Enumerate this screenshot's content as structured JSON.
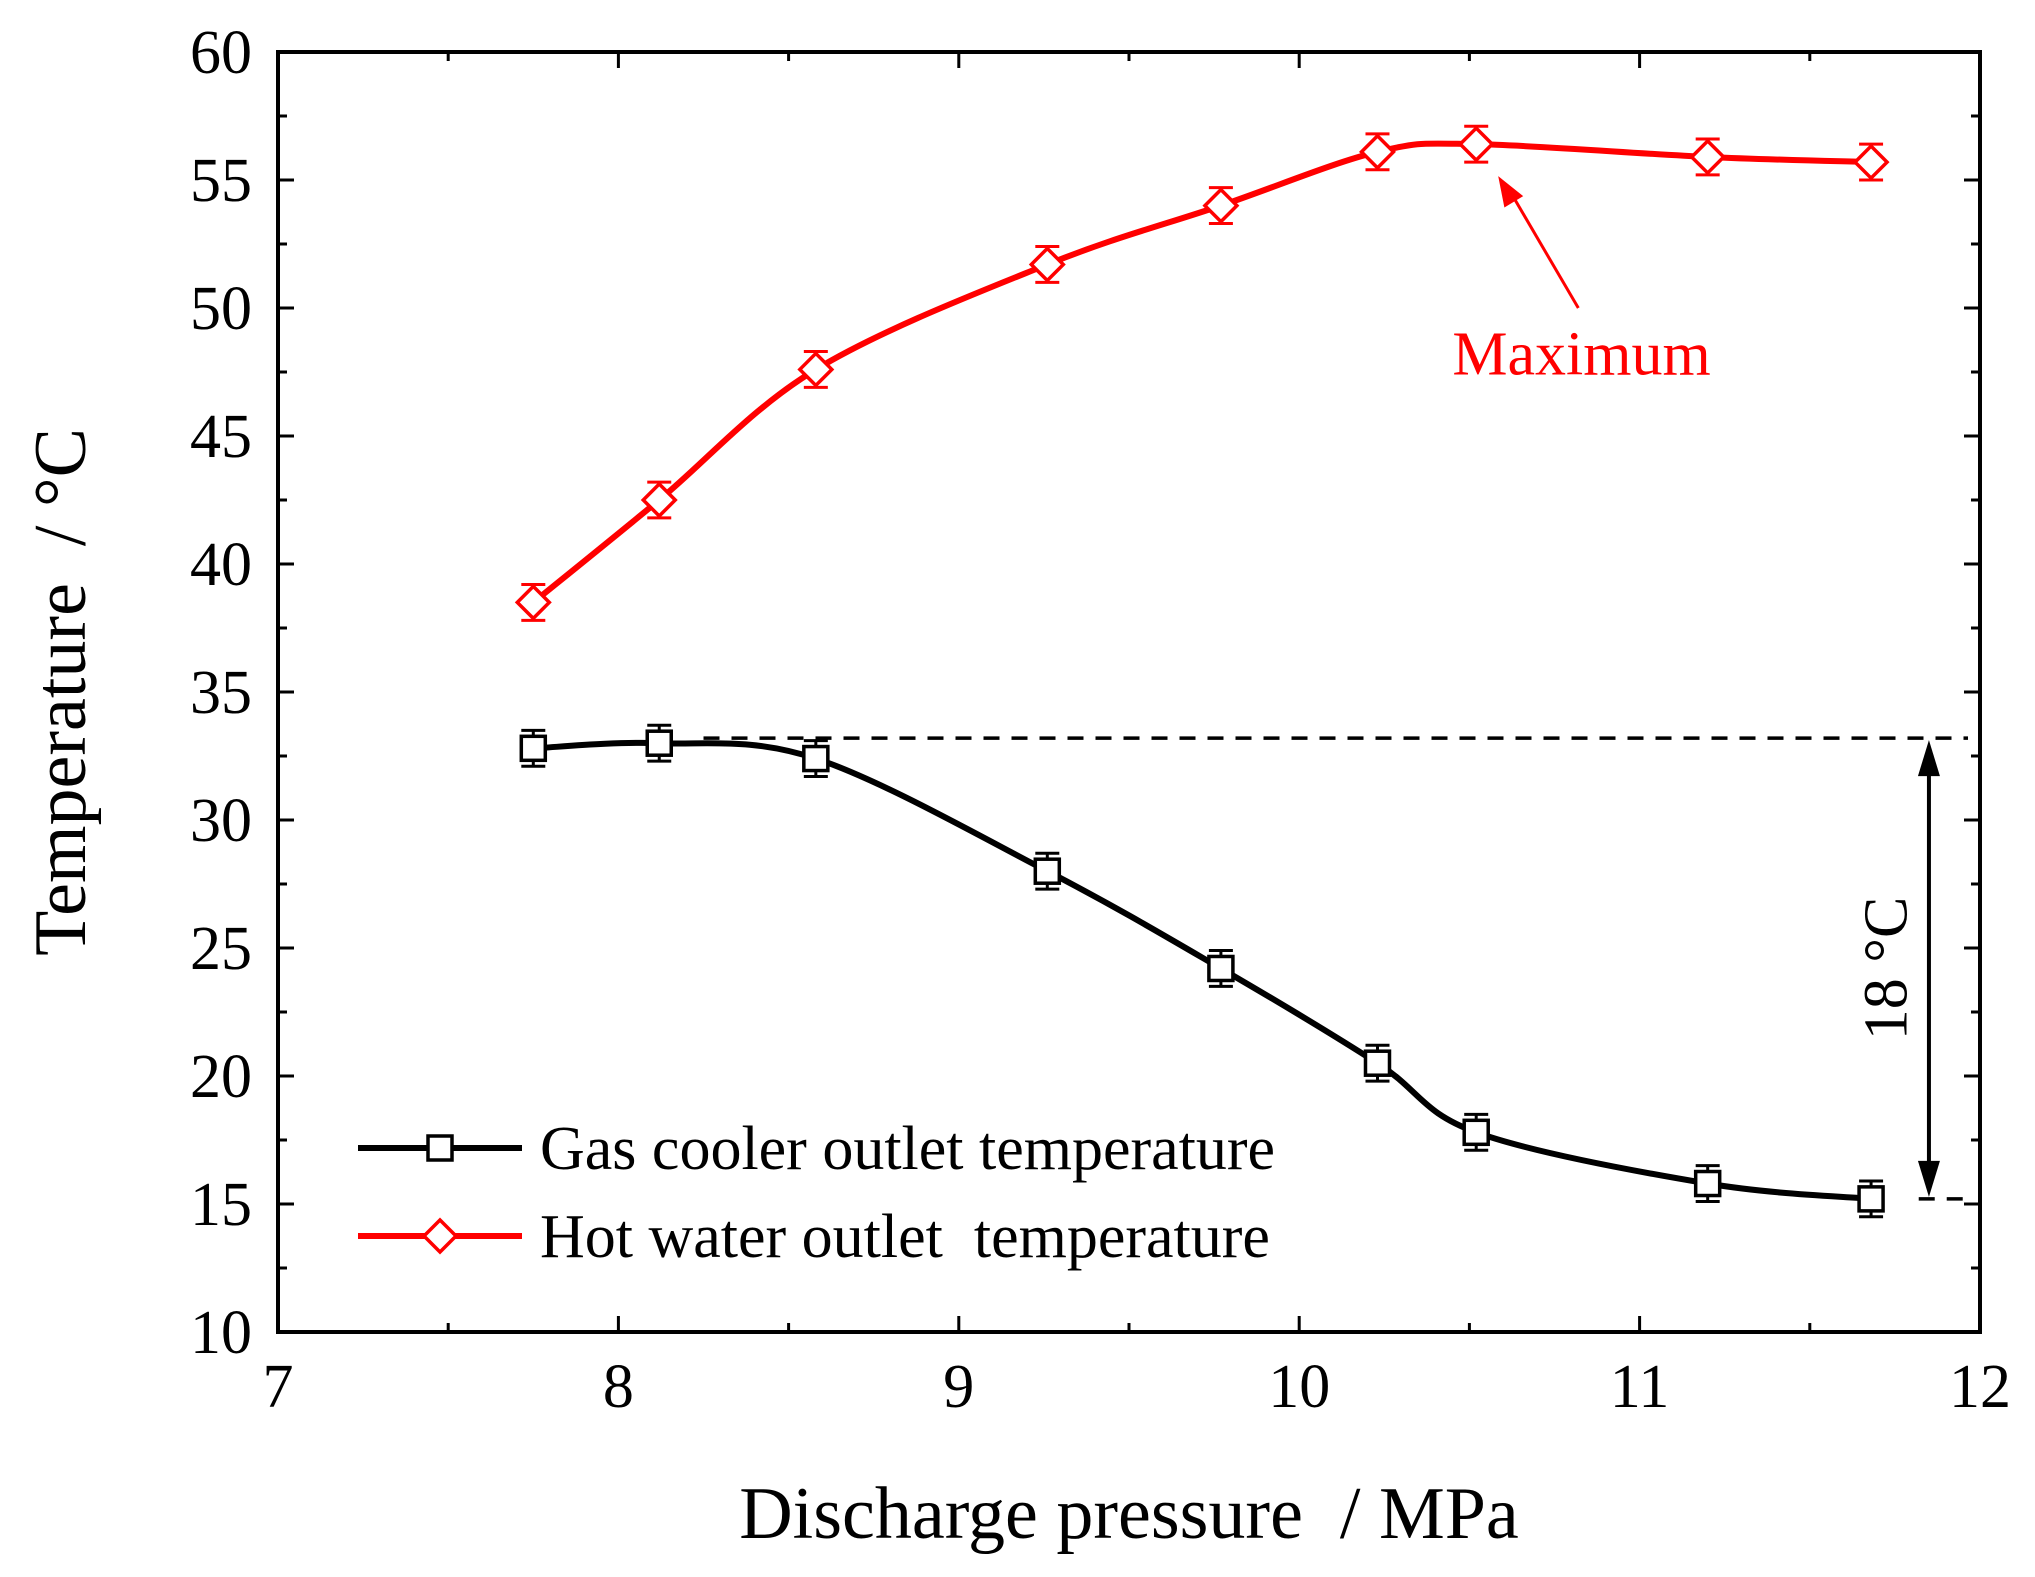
{
  "chart_data": {
    "type": "line",
    "title": "",
    "xlabel": "Discharge pressure  / MPa",
    "ylabel": "Temperature  / °C",
    "xlim": [
      7,
      12
    ],
    "ylim": [
      10,
      60
    ],
    "xticks": [
      7,
      8,
      9,
      10,
      11,
      12
    ],
    "yticks": [
      10,
      15,
      20,
      25,
      30,
      35,
      40,
      45,
      50,
      55,
      60
    ],
    "x_minor_step": 0.5,
    "y_minor_step": 2.5,
    "grid": false,
    "legend_position": "bottom-left",
    "series": [
      {
        "name": "Gas cooler outlet temperature",
        "color": "#000000",
        "marker": "square",
        "x": [
          7.75,
          8.12,
          8.58,
          9.26,
          9.77,
          10.23,
          10.52,
          11.2,
          11.68
        ],
        "y": [
          32.8,
          33.0,
          32.4,
          28.0,
          24.2,
          20.5,
          17.8,
          15.8,
          15.2
        ],
        "error": [
          0.7,
          0.7,
          0.7,
          0.7,
          0.7,
          0.7,
          0.7,
          0.7,
          0.7
        ]
      },
      {
        "name": "Hot water outlet  temperature",
        "color": "#ff0000",
        "marker": "diamond",
        "x": [
          7.75,
          8.12,
          8.58,
          9.26,
          9.77,
          10.23,
          10.52,
          11.2,
          11.68
        ],
        "y": [
          38.5,
          42.5,
          47.6,
          51.7,
          54.0,
          56.1,
          56.4,
          55.9,
          55.7
        ],
        "error": [
          0.7,
          0.7,
          0.7,
          0.7,
          0.7,
          0.7,
          0.7,
          0.7,
          0.7
        ]
      }
    ],
    "annotations": {
      "maximum": {
        "text": "Maximum",
        "color": "#ff0000",
        "point": [
          10.52,
          56.4
        ]
      },
      "difference": {
        "text": "18 °C",
        "color": "#000000",
        "y_top": 33.2,
        "y_bottom": 15.2,
        "x": 11.85
      }
    }
  }
}
